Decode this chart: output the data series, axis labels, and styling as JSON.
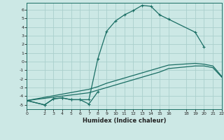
{
  "xlabel": "Humidex (Indice chaleur)",
  "background_color": "#cce8e5",
  "grid_color": "#aad0cc",
  "line_color": "#1a6e64",
  "xlim": [
    0,
    22
  ],
  "ylim": [
    -5.5,
    6.8
  ],
  "xticks": [
    0,
    2,
    3,
    4,
    5,
    6,
    7,
    8,
    9,
    10,
    11,
    12,
    13,
    14,
    15,
    16,
    18,
    19,
    20,
    21,
    22
  ],
  "yticks": [
    -5,
    -4,
    -3,
    -2,
    -1,
    0,
    1,
    2,
    3,
    4,
    5,
    6
  ],
  "curve1_x": [
    0,
    2,
    3,
    4,
    5,
    6,
    7,
    8,
    9,
    10,
    11,
    12,
    13,
    14,
    15,
    16,
    19,
    20
  ],
  "curve1_y": [
    -4.5,
    -5.0,
    -4.3,
    -4.2,
    -4.4,
    -4.4,
    -4.4,
    0.3,
    3.5,
    4.7,
    5.4,
    5.9,
    6.5,
    6.4,
    5.4,
    4.9,
    3.4,
    1.7
  ],
  "curve2_x": [
    0,
    2,
    3,
    4,
    5,
    6,
    7,
    8
  ],
  "curve2_y": [
    -4.5,
    -5.0,
    -4.3,
    -4.2,
    -4.4,
    -4.4,
    -4.9,
    -3.5
  ],
  "curve3_x": [
    0,
    7,
    8,
    9,
    10,
    11,
    12,
    13,
    14,
    15,
    16,
    19,
    20,
    21,
    22
  ],
  "curve3_y": [
    -4.5,
    -3.6,
    -3.3,
    -3.0,
    -2.7,
    -2.4,
    -2.1,
    -1.8,
    -1.5,
    -1.2,
    -0.8,
    -0.5,
    -0.5,
    -0.7,
    -1.8
  ],
  "curve4_x": [
    0,
    7,
    8,
    9,
    10,
    11,
    12,
    13,
    14,
    15,
    16,
    19,
    20,
    21,
    22
  ],
  "curve4_y": [
    -4.5,
    -3.2,
    -2.9,
    -2.5,
    -2.2,
    -1.9,
    -1.6,
    -1.3,
    -1.0,
    -0.7,
    -0.4,
    -0.2,
    -0.3,
    -0.5,
    -1.7
  ]
}
